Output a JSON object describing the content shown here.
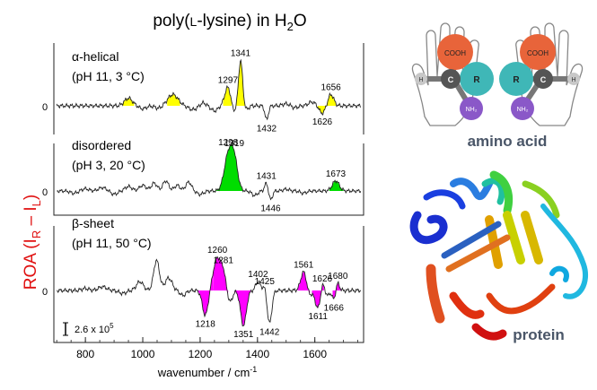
{
  "chart_data": {
    "type": "line",
    "title": {
      "pre": "poly(",
      "small": "L",
      "mid": "-lysine) in H",
      "sub": "2",
      "post": "O"
    },
    "xlabel": {
      "text": "wavenumber / cm",
      "sup": "-1"
    },
    "ylabel": {
      "pre": "ROA (I",
      "sub1": "R",
      "mid": " – I",
      "sub2": "L",
      "post": ")"
    },
    "xlim": [
      690,
      1770
    ],
    "xticks": [
      800,
      1000,
      1200,
      1400,
      1600
    ],
    "scale_bar": "2.6 x 10",
    "scale_bar_exp": "5",
    "zero_label": "0",
    "panels": [
      {
        "label_line1": "α-helical",
        "label_line2": "(pH 11, 3 °C)",
        "fill_color": "#ffff00",
        "peaks": [
          {
            "x": 950,
            "a": 0.3,
            "w": 14
          },
          {
            "x": 1000,
            "a": -0.12,
            "w": 12
          },
          {
            "x": 1055,
            "a": -0.1,
            "w": 12
          },
          {
            "x": 1105,
            "a": 0.45,
            "w": 18
          },
          {
            "x": 1175,
            "a": -0.15,
            "w": 15
          },
          {
            "x": 1210,
            "a": 0.12,
            "w": 10
          },
          {
            "x": 1250,
            "a": -0.2,
            "w": 12
          },
          {
            "x": 1297,
            "a": 0.75,
            "w": 11
          },
          {
            "x": 1316,
            "a": -0.3,
            "w": 8
          },
          {
            "x": 1341,
            "a": 1.8,
            "w": 7
          },
          {
            "x": 1362,
            "a": -0.15,
            "w": 7
          },
          {
            "x": 1432,
            "a": -0.55,
            "w": 6
          },
          {
            "x": 1500,
            "a": 0.08,
            "w": 12
          },
          {
            "x": 1530,
            "a": -0.08,
            "w": 10
          },
          {
            "x": 1590,
            "a": 0.15,
            "w": 12
          },
          {
            "x": 1626,
            "a": -0.3,
            "w": 10
          },
          {
            "x": 1656,
            "a": 0.45,
            "w": 10
          }
        ],
        "fills": [
          [
            930,
            970
          ],
          [
            1085,
            1130
          ],
          [
            1280,
            1310
          ],
          [
            1327,
            1356
          ],
          [
            1610,
            1643
          ],
          [
            1643,
            1673
          ]
        ],
        "annotations": [
          {
            "text": "1341",
            "x": 1341
          },
          {
            "text": "1297",
            "x": 1297
          },
          {
            "text": "1656",
            "x": 1656
          },
          {
            "text": "1432",
            "x": 1432
          },
          {
            "text": "1626",
            "x": 1626
          }
        ]
      },
      {
        "label_line1": "disordered",
        "label_line2": "(pH 3, 20 °C)",
        "fill_color": "#00dd00",
        "peaks": [
          {
            "x": 760,
            "a": -0.1,
            "w": 12
          },
          {
            "x": 800,
            "a": 0.1,
            "w": 12
          },
          {
            "x": 860,
            "a": 0.15,
            "w": 14
          },
          {
            "x": 900,
            "a": -0.15,
            "w": 12
          },
          {
            "x": 950,
            "a": 0.2,
            "w": 12
          },
          {
            "x": 1000,
            "a": 0.25,
            "w": 12
          },
          {
            "x": 1040,
            "a": 0.35,
            "w": 10
          },
          {
            "x": 1080,
            "a": 0.45,
            "w": 10
          },
          {
            "x": 1120,
            "a": 0.25,
            "w": 10
          },
          {
            "x": 1160,
            "a": 0.4,
            "w": 10
          },
          {
            "x": 1200,
            "a": -0.15,
            "w": 12
          },
          {
            "x": 1298,
            "a": 1.55,
            "w": 14
          },
          {
            "x": 1319,
            "a": 1.3,
            "w": 12
          },
          {
            "x": 1390,
            "a": -0.2,
            "w": 10
          },
          {
            "x": 1431,
            "a": 0.35,
            "w": 6
          },
          {
            "x": 1446,
            "a": -0.4,
            "w": 6
          },
          {
            "x": 1500,
            "a": 0.08,
            "w": 10
          },
          {
            "x": 1560,
            "a": -0.1,
            "w": 10
          },
          {
            "x": 1673,
            "a": 0.45,
            "w": 12
          }
        ],
        "fills": [
          [
            1250,
            1350
          ],
          [
            1650,
            1700
          ]
        ],
        "annotations": [
          {
            "text": "1298",
            "x": 1298
          },
          {
            "text": "1319",
            "x": 1319
          },
          {
            "text": "1431",
            "x": 1431
          },
          {
            "text": "1673",
            "x": 1673
          },
          {
            "text": "1446",
            "x": 1446
          }
        ]
      },
      {
        "label_line1": "β-sheet",
        "label_line2": "(pH 11, 50 °C)",
        "fill_color": "#ff00ff",
        "peaks": [
          {
            "x": 800,
            "a": 0.08,
            "w": 12
          },
          {
            "x": 860,
            "a": 0.15,
            "w": 14
          },
          {
            "x": 930,
            "a": -0.12,
            "w": 12
          },
          {
            "x": 990,
            "a": 0.35,
            "w": 12
          },
          {
            "x": 1048,
            "a": 1.2,
            "w": 10
          },
          {
            "x": 1090,
            "a": 0.5,
            "w": 12
          },
          {
            "x": 1140,
            "a": -0.2,
            "w": 10
          },
          {
            "x": 1218,
            "a": -1.0,
            "w": 10
          },
          {
            "x": 1260,
            "a": 1.3,
            "w": 14
          },
          {
            "x": 1281,
            "a": 0.5,
            "w": 8
          },
          {
            "x": 1305,
            "a": -0.45,
            "w": 8
          },
          {
            "x": 1351,
            "a": -1.4,
            "w": 10
          },
          {
            "x": 1402,
            "a": 0.35,
            "w": 8
          },
          {
            "x": 1425,
            "a": 0.2,
            "w": 6
          },
          {
            "x": 1442,
            "a": -1.3,
            "w": 8
          },
          {
            "x": 1561,
            "a": 0.75,
            "w": 10
          },
          {
            "x": 1580,
            "a": -0.2,
            "w": 8
          },
          {
            "x": 1611,
            "a": -0.7,
            "w": 10
          },
          {
            "x": 1626,
            "a": 0.4,
            "w": 6
          },
          {
            "x": 1645,
            "a": -0.2,
            "w": 6
          },
          {
            "x": 1666,
            "a": -0.35,
            "w": 6
          },
          {
            "x": 1680,
            "a": 0.3,
            "w": 6
          }
        ],
        "fills": [
          [
            1190,
            1245
          ],
          [
            1245,
            1298
          ],
          [
            1320,
            1380
          ],
          [
            1540,
            1583
          ],
          [
            1590,
            1632
          ],
          [
            1662,
            1690
          ]
        ],
        "annotations": [
          {
            "text": "1260",
            "x": 1260
          },
          {
            "text": "1281",
            "x": 1281
          },
          {
            "text": "1402",
            "x": 1402
          },
          {
            "text": "1425",
            "x": 1425
          },
          {
            "text": "1561",
            "x": 1561
          },
          {
            "text": "1626",
            "x": 1626
          },
          {
            "text": "1680",
            "x": 1680
          },
          {
            "text": "1218",
            "x": 1218
          },
          {
            "text": "1351",
            "x": 1351
          },
          {
            "text": "1442",
            "x": 1442
          },
          {
            "text": "1611",
            "x": 1611
          },
          {
            "text": "1666",
            "x": 1666
          }
        ]
      }
    ]
  },
  "right": {
    "amino_acid": {
      "caption": "amino acid",
      "left": {
        "top": "COOH",
        "mid": "R",
        "bottom": "NH₂",
        "c": "C",
        "h": "H"
      },
      "right": {
        "top": "COOH",
        "mid": "R",
        "bottom": "NH₂",
        "c": "C",
        "h": "H"
      },
      "colors": {
        "cooh": "#e8643a",
        "r": "#3fb7b7",
        "nh2": "#8a58c8",
        "c": "#555555",
        "h": "#c8c8c8"
      }
    },
    "protein": {
      "caption": "protein"
    }
  }
}
